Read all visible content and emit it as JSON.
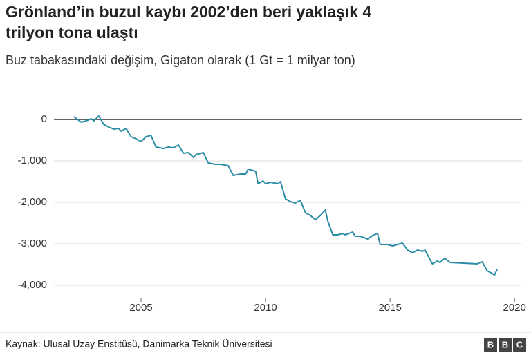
{
  "chart_data": {
    "type": "line",
    "title": [
      "Grönland’in buzul kaybı 2002’den beri yaklaşık 4",
      "trilyon tona ulaştı"
    ],
    "subtitle": "Buz tabakasındaki değişim, Gigaton olarak (1 Gt = 1 milyar ton)",
    "source": "Kaynak: Ulusal Uzay Enstitüsü, Danimarka Teknik Üniversitesi",
    "logo": [
      "B",
      "B",
      "C"
    ],
    "color": "#2b8ca6",
    "grid": true,
    "xlim": [
      2001.5,
      2020.3
    ],
    "xticks": [
      2005,
      2010,
      2015,
      2020
    ],
    "ylim": [
      -4300,
      300
    ],
    "yticks": [
      0,
      {
        "value": -1000,
        "label": "-1,000"
      },
      {
        "value": -2000,
        "label": "-2,000"
      },
      {
        "value": -3000,
        "label": "-3,000"
      },
      {
        "value": -4000,
        "label": "-4,000"
      }
    ],
    "x": [
      2002.3,
      2002.6,
      2002.8,
      2003.0,
      2003.1,
      2003.3,
      2003.5,
      2003.7,
      2003.9,
      2004.1,
      2004.2,
      2004.4,
      2004.6,
      2004.8,
      2005.0,
      2005.2,
      2005.4,
      2005.6,
      2005.9,
      2006.1,
      2006.3,
      2006.5,
      2006.7,
      2006.9,
      2007.1,
      2007.2,
      2007.5,
      2007.7,
      2008.0,
      2008.2,
      2008.5,
      2008.7,
      2009.0,
      2009.2,
      2009.3,
      2009.6,
      2009.7,
      2009.9,
      2010.0,
      2010.2,
      2010.5,
      2010.6,
      2010.8,
      2011.0,
      2011.2,
      2011.4,
      2011.6,
      2011.8,
      2012.0,
      2012.2,
      2012.4,
      2012.5,
      2012.7,
      2012.9,
      2013.1,
      2013.2,
      2013.5,
      2013.6,
      2013.8,
      2014.1,
      2014.3,
      2014.5,
      2014.6,
      2014.9,
      2015.1,
      2015.3,
      2015.5,
      2015.7,
      2015.9,
      2016.1,
      2016.3,
      2016.4,
      2016.7,
      2016.9,
      2017.0,
      2017.2,
      2017.4,
      2018.5,
      2018.7,
      2018.9,
      2019.0,
      2019.2,
      2019.3
    ],
    "values": [
      67,
      -67,
      -33,
      17,
      -33,
      83,
      -117,
      -183,
      -233,
      -217,
      -283,
      -217,
      -417,
      -467,
      -533,
      -417,
      -383,
      -667,
      -700,
      -667,
      -683,
      -617,
      -817,
      -800,
      -917,
      -850,
      -800,
      -1050,
      -1083,
      -1083,
      -1117,
      -1350,
      -1317,
      -1317,
      -1200,
      -1250,
      -1550,
      -1483,
      -1550,
      -1517,
      -1550,
      -1500,
      -1917,
      -1983,
      -2017,
      -1950,
      -2250,
      -2317,
      -2417,
      -2317,
      -2183,
      -2450,
      -2783,
      -2783,
      -2750,
      -2783,
      -2717,
      -2817,
      -2817,
      -2883,
      -2800,
      -2750,
      -3017,
      -3017,
      -3050,
      -3017,
      -2983,
      -3150,
      -3217,
      -3150,
      -3183,
      -3150,
      -3483,
      -3417,
      -3450,
      -3350,
      -3450,
      -3483,
      -3433,
      -3650,
      -3683,
      -3750,
      -3617
    ]
  }
}
